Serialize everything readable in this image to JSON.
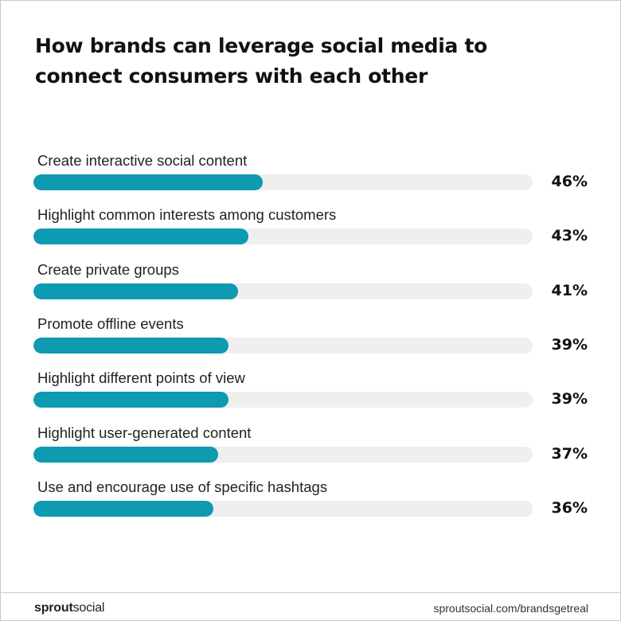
{
  "chart_data": {
    "type": "bar",
    "orientation": "horizontal",
    "title": "How brands can leverage social media to connect consumers with each other",
    "categories": [
      "Create interactive social content",
      "Highlight common interests among customers",
      "Create private groups",
      "Promote offline events",
      "Highlight different points of view",
      "Highlight user-generated content",
      "Use and encourage use of specific hashtags"
    ],
    "values": [
      46,
      43,
      41,
      39,
      39,
      37,
      36
    ],
    "value_labels": [
      "46%",
      "43%",
      "41%",
      "39%",
      "39%",
      "37%",
      "36%"
    ],
    "xlim": [
      0,
      100
    ],
    "grid": false,
    "legend": "none",
    "colors": {
      "bar": "#0e9ab0",
      "track": "#efefef"
    }
  },
  "footer": {
    "brand_bold": "sprout",
    "brand_regular": "social",
    "url": "sproutsocial.com/brandsgetreal"
  }
}
